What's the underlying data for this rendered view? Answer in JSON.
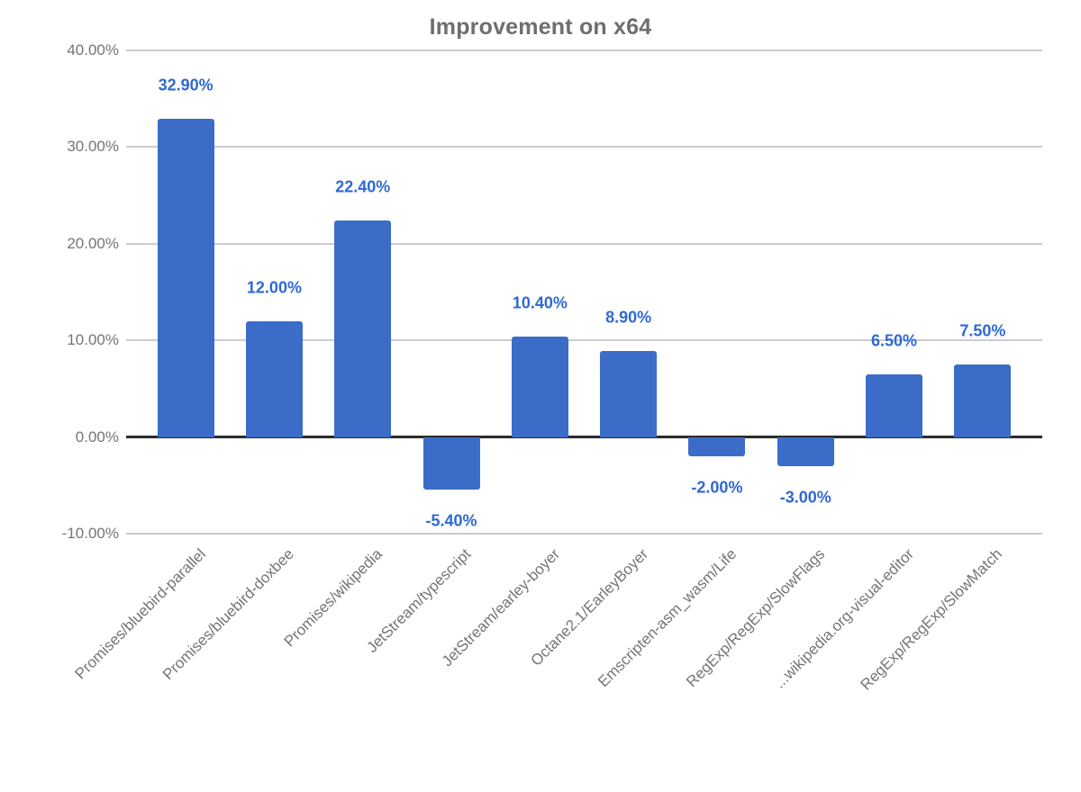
{
  "chart_data": {
    "type": "bar",
    "title": "Improvement on x64",
    "categories": [
      "Promises/bluebird-parallel",
      "Promises/bluebird-doxbee",
      "Promises/wikipedia",
      "JetStream/typescript",
      "JetStream/earley-boyer",
      "Octane2.1/EarleyBoyer",
      "Emscripten-asm_wasm/Life",
      "RegExp/RegExp/SlowFlags",
      "...wikipedia.org-visual-editor",
      "RegExp/RegExp/SlowMatch"
    ],
    "values": [
      32.9,
      12.0,
      22.4,
      -5.4,
      10.4,
      8.9,
      -2.0,
      -3.0,
      6.5,
      7.5
    ],
    "value_labels": [
      "32.90%",
      "12.00%",
      "22.40%",
      "-5.40%",
      "10.40%",
      "8.90%",
      "-2.00%",
      "-3.00%",
      "6.50%",
      "7.50%"
    ],
    "y_ticks": [
      {
        "label": "40.00%",
        "value": 40
      },
      {
        "label": "30.00%",
        "value": 30
      },
      {
        "label": "20.00%",
        "value": 20
      },
      {
        "label": "10.00%",
        "value": 10
      },
      {
        "label": "0.00%",
        "value": 0
      },
      {
        "label": "-10.00%",
        "value": -10
      }
    ],
    "ylim": [
      -10,
      40
    ],
    "xlabel": "",
    "ylabel": "",
    "legend_position": "none",
    "grid": "horizontal",
    "colors": {
      "bar": "#3b6cc8",
      "annotation": "#2e69d2",
      "gridline": "#cccccc",
      "zero_line": "#2b2b2b",
      "axis_text": "#757575",
      "title_text": "#6e6e6e",
      "background": "#ffffff"
    }
  }
}
